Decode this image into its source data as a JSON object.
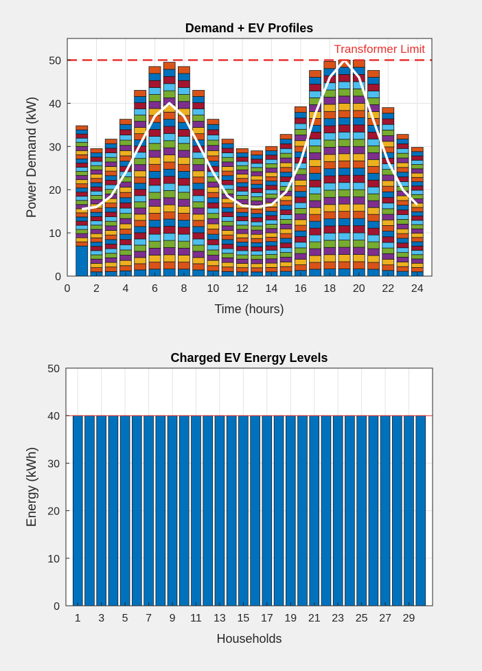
{
  "chart_data": [
    {
      "type": "bar",
      "stacked": true,
      "title": "Demand + EV Profiles",
      "xlabel": "Time (hours)",
      "ylabel": "Power Demand (kW)",
      "xlim": [
        0,
        25
      ],
      "ylim": [
        0,
        55
      ],
      "xticks": [
        0,
        2,
        4,
        6,
        8,
        10,
        12,
        14,
        16,
        18,
        20,
        22,
        24
      ],
      "yticks": [
        0,
        10,
        20,
        30,
        40,
        50
      ],
      "grid": true,
      "x": [
        1,
        2,
        3,
        4,
        5,
        6,
        7,
        8,
        9,
        10,
        11,
        12,
        13,
        14,
        15,
        16,
        17,
        18,
        19,
        20,
        21,
        22,
        23,
        24
      ],
      "stack_totals": [
        34.8,
        29.5,
        31.7,
        36.3,
        43.0,
        48.5,
        49.5,
        48.5,
        43.0,
        36.3,
        31.7,
        29.5,
        29.0,
        30.0,
        32.8,
        39.2,
        47.6,
        49.7,
        50.0,
        50.0,
        47.6,
        39.0,
        32.8,
        29.8
      ],
      "segment_colors": [
        "#0072bd",
        "#d95319",
        "#edb120",
        "#7e2f8e",
        "#77ac30",
        "#4dbeee",
        "#a2142f"
      ],
      "segments_per_bar": 30,
      "line_series": {
        "color": "#ffffff",
        "values": [
          15.5,
          16.0,
          18.5,
          24.0,
          30.5,
          37.0,
          40.0,
          37.0,
          30.5,
          24.0,
          18.5,
          16.3,
          16.0,
          16.5,
          19.5,
          26.5,
          37.5,
          46.0,
          50.0,
          46.0,
          36.0,
          26.5,
          20.0,
          16.5
        ]
      },
      "limit_line": {
        "value": 50,
        "label": "Transformer Limit",
        "color": "#e8302c"
      }
    },
    {
      "type": "bar",
      "title": "Charged EV Energy Levels",
      "xlabel": "Households",
      "ylabel": "Energy (kWh)",
      "xlim": [
        0,
        31
      ],
      "ylim": [
        0,
        50
      ],
      "xticks": [
        1,
        3,
        5,
        7,
        9,
        11,
        13,
        15,
        17,
        19,
        21,
        23,
        25,
        27,
        29
      ],
      "yticks": [
        0,
        10,
        20,
        30,
        40,
        50
      ],
      "grid": true,
      "bar_color": "#0072bd",
      "categories": [
        1,
        2,
        3,
        4,
        5,
        6,
        7,
        8,
        9,
        10,
        11,
        12,
        13,
        14,
        15,
        16,
        17,
        18,
        19,
        20,
        21,
        22,
        23,
        24,
        25,
        26,
        27,
        28,
        29,
        30
      ],
      "values": [
        40,
        40,
        40,
        40,
        40,
        40,
        40,
        40,
        40,
        40,
        40,
        40,
        40,
        40,
        40,
        40,
        40,
        40,
        40,
        40,
        40,
        40,
        40,
        40,
        40,
        40,
        40,
        40,
        40,
        40
      ],
      "reference_line": {
        "value": 40,
        "color": "#e8302c"
      }
    }
  ]
}
